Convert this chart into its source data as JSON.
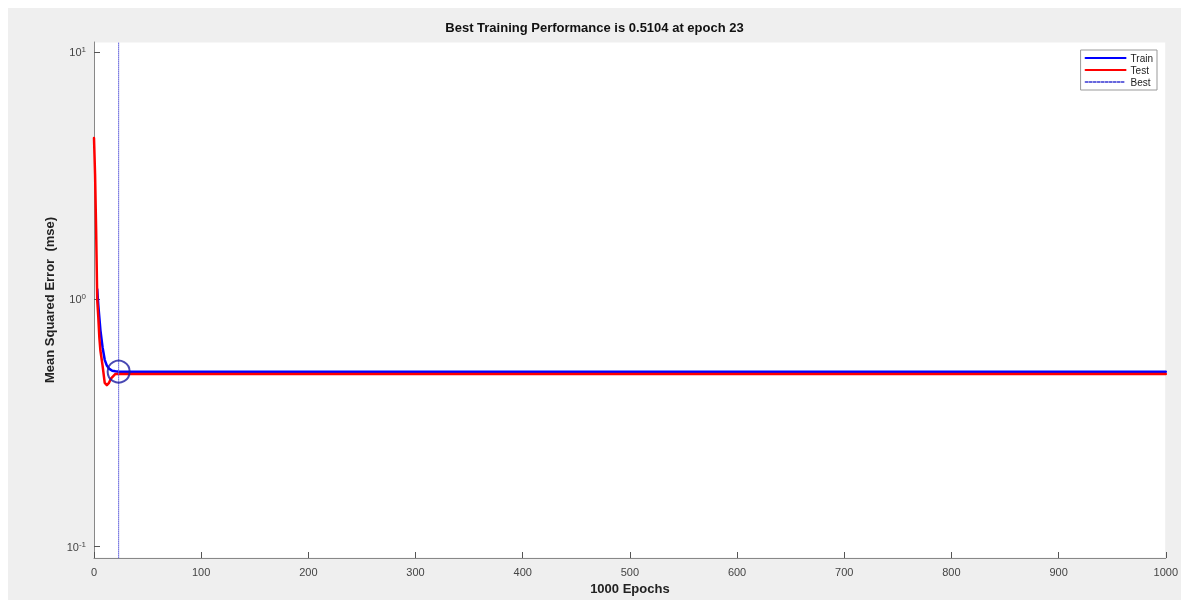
{
  "chart_data": {
    "type": "line",
    "title": "Best Training Performance is 0.5104 at epoch 23",
    "xlabel": "1000 Epochs",
    "ylabel": "Mean Squared Error  (mse)",
    "log": "y",
    "grid": false,
    "legend": "top right",
    "line_style": "solid",
    "marker": "none",
    "xlim": [
      0,
      1000
    ],
    "xticks": [
      0,
      100,
      200,
      300,
      400,
      500,
      600,
      700,
      800,
      900,
      1000
    ],
    "ylim": [
      0.09,
      11
    ],
    "yticks": [
      {
        "value": 0.1,
        "label": "10$^{-1}$"
      },
      {
        "value": 1,
        "label": "10$^{0}$"
      },
      {
        "value": 10,
        "label": "10$^{1}$"
      }
    ],
    "series": [
      {
        "name": "Train",
        "color": "#0000ff",
        "x": [
          3,
          4,
          6,
          8,
          10,
          12,
          14,
          17,
          20,
          23,
          30,
          100,
          1000
        ],
        "values": [
          1.1,
          0.95,
          0.75,
          0.64,
          0.57,
          0.54,
          0.525,
          0.515,
          0.512,
          0.5104,
          0.51,
          0.51,
          0.51
        ]
      },
      {
        "name": "Test",
        "color": "#ff0000",
        "x": [
          0,
          1,
          2,
          3,
          4,
          5,
          6,
          8,
          10,
          12,
          14,
          16,
          18,
          20,
          23,
          30,
          100,
          1000
        ],
        "values": [
          4.5,
          3.2,
          1.9,
          1.0,
          0.85,
          0.7,
          0.62,
          0.54,
          0.46,
          0.45,
          0.46,
          0.48,
          0.49,
          0.5,
          0.5,
          0.5,
          0.5,
          0.5
        ]
      },
      {
        "name": "Best",
        "color": "#6666dd",
        "line_style": "dotted",
        "x": [
          23,
          23
        ],
        "values": [
          0.09,
          11
        ]
      },
      {
        "type": "scatter",
        "color": "#1a1aa0",
        "marker": "circle",
        "x": [
          23
        ],
        "values": [
          0.5104
        ]
      }
    ]
  }
}
